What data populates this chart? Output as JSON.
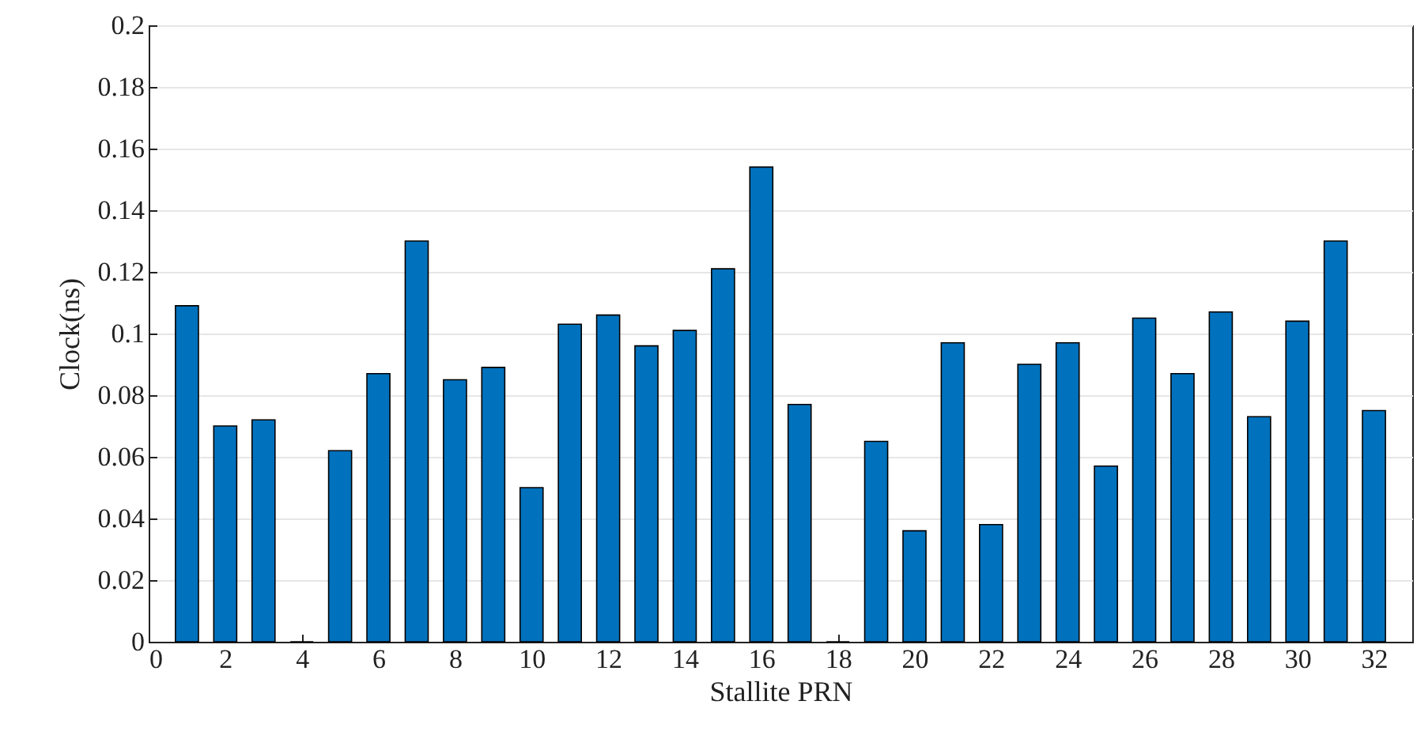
{
  "chart_data": {
    "type": "bar",
    "xlabel": "Stallite PRN",
    "ylabel": "Clock(ns)",
    "x": [
      1,
      2,
      3,
      4,
      5,
      6,
      7,
      8,
      9,
      10,
      11,
      12,
      13,
      14,
      15,
      16,
      17,
      18,
      19,
      20,
      21,
      22,
      23,
      24,
      25,
      26,
      27,
      28,
      29,
      30,
      31,
      32
    ],
    "series": [
      {
        "color": "#0072bd",
        "values": [
          0.109,
          0.07,
          0.072,
          null,
          0.062,
          0.087,
          0.13,
          0.085,
          0.089,
          0.05,
          0.103,
          0.106,
          0.096,
          0.101,
          0.121,
          0.154,
          0.077,
          null,
          0.065,
          0.036,
          0.097,
          0.038,
          0.09,
          0.097,
          0.057,
          0.105,
          0.087,
          0.107,
          0.073,
          0.104,
          0.13,
          0.075
        ]
      }
    ],
    "xlim": [
      0,
      33
    ],
    "xticks": [
      0,
      2,
      4,
      6,
      8,
      10,
      12,
      14,
      16,
      18,
      20,
      22,
      24,
      26,
      28,
      30,
      32
    ],
    "ylim": [
      0,
      0.2
    ],
    "yticks": [
      0,
      0.02,
      0.04,
      0.06,
      0.08,
      0.1,
      0.12,
      0.14,
      0.16,
      0.18,
      0.2
    ],
    "grid": "y"
  }
}
